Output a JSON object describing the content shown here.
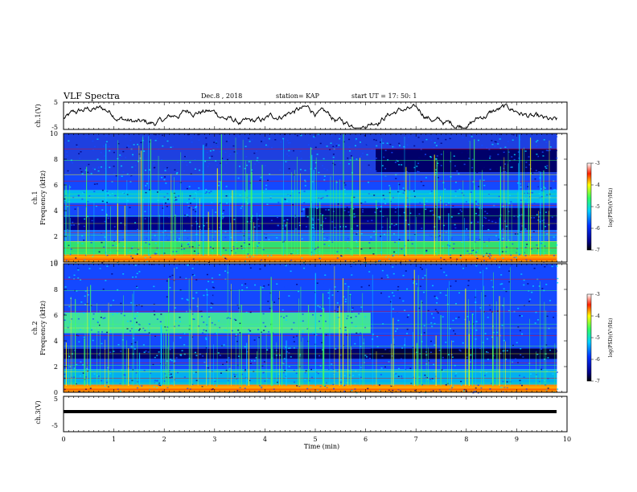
{
  "header": {
    "title": "VLF Spectra",
    "date": "Dec.8 , 2018",
    "station": "station= KAP",
    "start_ut": "start UT = 17: 50: 1"
  },
  "chart_data": [
    {
      "type": "line",
      "panel": "ch1-waveform",
      "ylabel": "ch.1(V)",
      "ylim": [
        -5,
        5
      ],
      "yticks": [
        "5",
        "-5"
      ],
      "xlim": [
        0,
        10
      ],
      "note": "noisy waveform fluctuating roughly between -4 and 3.5 V over 0 to 9.8 min"
    },
    {
      "type": "heatmap",
      "panel": "ch1-spectrogram",
      "ylabel_top": "ch.1",
      "ylabel": "Frequency (kHz)",
      "ylim": [
        0,
        10
      ],
      "yticks": [
        "0",
        "2",
        "4",
        "6",
        "8",
        "10"
      ],
      "xlim": [
        0,
        10
      ],
      "colorbar": {
        "label": "log(PSD)(V²/Hz)",
        "range": [
          -7,
          -3
        ],
        "ticks": [
          "-3",
          "-4",
          "-5",
          "-6",
          "-7"
        ]
      }
    },
    {
      "type": "heatmap",
      "panel": "ch2-spectrogram",
      "ylabel_top": "ch.2",
      "ylabel": "Frequency (kHz)",
      "ylim": [
        0,
        10
      ],
      "yticks": [
        "0",
        "2",
        "4",
        "6",
        "8",
        "10"
      ],
      "xlim": [
        0,
        10
      ],
      "colorbar": {
        "label": "log(PSD)(V²/Hz)",
        "range": [
          -7,
          -3
        ],
        "ticks": [
          "-3",
          "-4",
          "-5",
          "-6",
          "-7"
        ]
      }
    },
    {
      "type": "line",
      "panel": "ch3-waveform",
      "ylabel": "ch.3(V)",
      "ylim": [
        -5,
        5
      ],
      "yticks": [
        "5",
        "-5"
      ],
      "xlim": [
        0,
        10
      ],
      "note": "constant level near 0 V from 0 to 9.8 min"
    }
  ],
  "xaxis": {
    "label": "Time (min)",
    "ticks": [
      "0",
      "1",
      "2",
      "3",
      "4",
      "5",
      "6",
      "7",
      "8",
      "9",
      "10"
    ]
  },
  "colors": {
    "spectrum_dark": "#00007a",
    "spectrum_blue": "#1448ff",
    "spectrum_cyan": "#00d8ff",
    "spectrum_green": "#40ff60",
    "spectrum_yellow": "#ffff00",
    "spectrum_red": "#ff0000"
  }
}
